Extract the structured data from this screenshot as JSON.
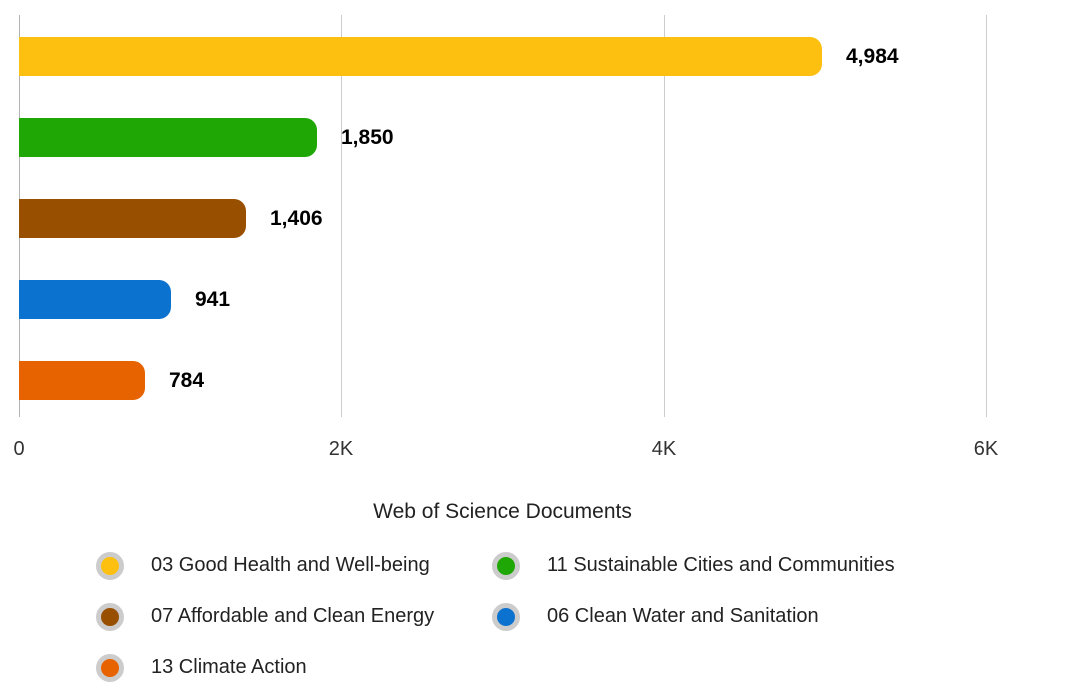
{
  "chart_data": {
    "type": "bar",
    "orientation": "horizontal",
    "xlabel": "Web of Science Documents",
    "xlim": [
      0,
      6000
    ],
    "grid": true,
    "legend_position": "bottom",
    "x_ticks": [
      {
        "value": 0,
        "label": "0"
      },
      {
        "value": 2000,
        "label": "2K"
      },
      {
        "value": 4000,
        "label": "4K"
      },
      {
        "value": 6000,
        "label": "6K"
      }
    ],
    "series": [
      {
        "name": "03 Good Health and Well-being",
        "value": 4984,
        "label": "4,984",
        "color": "#FDC010"
      },
      {
        "name": "11 Sustainable Cities and Communities",
        "value": 1850,
        "label": "1,850",
        "color": "#1FA805"
      },
      {
        "name": "07 Affordable and Clean Energy",
        "value": 1406,
        "label": "1,406",
        "color": "#994F00"
      },
      {
        "name": "06 Clean Water and Sanitation",
        "value": 941,
        "label": "941",
        "color": "#0B72D0"
      },
      {
        "name": "13 Climate Action",
        "value": 784,
        "label": "784",
        "color": "#E66300"
      }
    ],
    "legend": [
      {
        "label": "03 Good Health and Well-being",
        "color": "#FDC010"
      },
      {
        "label": "11 Sustainable Cities and Communities",
        "color": "#1FA805"
      },
      {
        "label": "07 Affordable and Clean Energy",
        "color": "#994F00"
      },
      {
        "label": "06 Clean Water and Sanitation",
        "color": "#0B72D0"
      },
      {
        "label": "13 Climate Action",
        "color": "#E66300"
      }
    ],
    "colors": {
      "background": "#FFFFFF",
      "gridline": "#CCCCCC",
      "zero_line": "#B3B3B3",
      "value_label": "#000000",
      "tick_label": "#333333",
      "axis_title": "#222222",
      "legend_ring": "#CCCCCC"
    }
  }
}
